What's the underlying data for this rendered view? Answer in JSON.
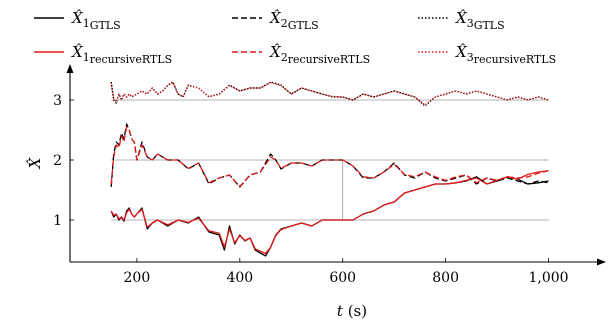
{
  "chart_data": {
    "type": "line",
    "title": "",
    "xlabel": "t",
    "xlabel_unit": "(s)",
    "ylabel": "X̂",
    "xlim": [
      70,
      1100
    ],
    "ylim": [
      0.3,
      3.5
    ],
    "xticks": [
      200,
      400,
      600,
      800,
      1000
    ],
    "xtick_labels": [
      "200",
      "400",
      "600",
      "800",
      "1,000"
    ],
    "yticks": [
      1,
      2,
      3
    ],
    "ytick_labels": [
      "1",
      "2",
      "3"
    ],
    "grid": "horizontal lines at y ticks",
    "legend_position": "top",
    "legend": [
      {
        "main": "X̂",
        "sub1": "1",
        "sub2": "GTLS",
        "color": "#000000",
        "dash": "solid"
      },
      {
        "main": "X̂",
        "sub1": "2",
        "sub2": "GTLS",
        "color": "#000000",
        "dash": "dashed"
      },
      {
        "main": "X̂",
        "sub1": "3",
        "sub2": "GTLS",
        "color": "#000000",
        "dash": "dotted"
      },
      {
        "main": "X̂",
        "sub1": "1",
        "sub2": "recursiveRTLS",
        "color": "#e41a1c",
        "dash": "solid"
      },
      {
        "main": "X̂",
        "sub1": "2",
        "sub2": "recursiveRTLS",
        "color": "#e41a1c",
        "dash": "dashed"
      },
      {
        "main": "X̂",
        "sub1": "3",
        "sub2": "recursiveRTLS",
        "color": "#e41a1c",
        "dash": "dotted"
      }
    ],
    "series": [
      {
        "color": "#000000",
        "dash": "solid",
        "width": 1.3,
        "x": [
          150,
          155,
          160,
          165,
          170,
          175,
          180,
          185,
          190,
          195,
          200,
          210,
          220,
          230,
          240,
          250,
          260,
          280,
          300,
          320,
          340,
          360,
          370,
          380,
          390,
          400,
          410,
          420,
          430,
          440,
          450,
          460,
          470,
          480,
          500,
          520,
          540,
          560,
          580,
          600,
          620,
          640,
          660,
          680,
          700,
          720,
          740,
          760,
          780,
          800,
          820,
          840,
          860,
          880,
          900,
          920,
          940,
          960,
          980,
          1000
        ],
        "y": [
          1.15,
          1.05,
          1.1,
          1.0,
          1.05,
          0.98,
          1.15,
          1.2,
          1.1,
          1.05,
          1.1,
          1.2,
          0.85,
          0.95,
          1.0,
          0.95,
          0.9,
          1.0,
          0.95,
          1.05,
          0.8,
          0.75,
          0.5,
          0.9,
          0.6,
          0.75,
          0.65,
          0.7,
          0.5,
          0.45,
          0.4,
          0.55,
          0.75,
          0.85,
          0.9,
          0.95,
          0.9,
          1.0,
          1.0,
          1.0,
          1.0,
          1.1,
          1.15,
          1.25,
          1.3,
          1.45,
          1.5,
          1.55,
          1.6,
          1.6,
          1.62,
          1.65,
          1.72,
          1.6,
          1.65,
          1.72,
          1.68,
          1.6,
          1.62,
          1.65
        ]
      },
      {
        "color": "#e41a1c",
        "dash": "solid",
        "width": 1.3,
        "x": [
          150,
          155,
          160,
          165,
          170,
          175,
          180,
          185,
          190,
          195,
          200,
          210,
          220,
          230,
          240,
          250,
          260,
          280,
          300,
          320,
          340,
          360,
          370,
          380,
          390,
          400,
          410,
          420,
          430,
          440,
          450,
          460,
          470,
          480,
          500,
          520,
          540,
          560,
          580,
          600,
          620,
          640,
          660,
          680,
          700,
          720,
          740,
          760,
          780,
          800,
          820,
          840,
          860,
          880,
          900,
          920,
          940,
          960,
          980,
          1000
        ],
        "y": [
          1.15,
          1.08,
          1.1,
          1.02,
          1.05,
          1.0,
          1.12,
          1.18,
          1.1,
          1.05,
          1.1,
          1.18,
          0.88,
          0.95,
          1.0,
          0.96,
          0.92,
          1.0,
          0.96,
          1.03,
          0.82,
          0.78,
          0.55,
          0.85,
          0.62,
          0.74,
          0.66,
          0.7,
          0.52,
          0.48,
          0.44,
          0.55,
          0.74,
          0.84,
          0.9,
          0.95,
          0.9,
          1.0,
          1.0,
          1.0,
          1.0,
          1.1,
          1.15,
          1.25,
          1.3,
          1.45,
          1.5,
          1.55,
          1.6,
          1.6,
          1.62,
          1.66,
          1.7,
          1.6,
          1.66,
          1.72,
          1.68,
          1.76,
          1.8,
          1.82
        ]
      },
      {
        "color": "#000000",
        "dash": "dashed",
        "width": 1.3,
        "x": [
          150,
          155,
          160,
          165,
          170,
          175,
          180,
          185,
          190,
          195,
          200,
          210,
          220,
          230,
          240,
          250,
          260,
          280,
          300,
          320,
          340,
          360,
          380,
          400,
          420,
          440,
          460,
          470,
          480,
          500,
          520,
          540,
          560,
          580,
          600,
          620,
          640,
          660,
          680,
          700,
          720,
          740,
          760,
          780,
          800,
          820,
          840,
          860,
          880,
          900,
          920,
          940,
          960,
          980,
          1000
        ],
        "y": [
          1.55,
          2.1,
          2.3,
          2.25,
          2.45,
          2.35,
          2.6,
          2.5,
          2.35,
          2.3,
          2.0,
          2.3,
          2.05,
          2.0,
          2.1,
          2.05,
          2.0,
          2.0,
          1.85,
          1.95,
          1.6,
          1.7,
          1.75,
          1.55,
          1.75,
          1.8,
          2.1,
          2.0,
          1.85,
          1.95,
          1.95,
          1.9,
          2.0,
          2.0,
          2.0,
          1.9,
          1.7,
          1.7,
          1.8,
          1.95,
          1.75,
          1.7,
          1.8,
          1.7,
          1.65,
          1.7,
          1.75,
          1.6,
          1.7,
          1.65,
          1.7,
          1.65,
          1.6,
          1.65,
          1.62
        ]
      },
      {
        "color": "#e41a1c",
        "dash": "dashed",
        "width": 1.3,
        "x": [
          150,
          155,
          160,
          165,
          170,
          175,
          180,
          185,
          190,
          195,
          200,
          210,
          220,
          230,
          240,
          250,
          260,
          280,
          300,
          320,
          340,
          360,
          380,
          400,
          420,
          440,
          460,
          470,
          480,
          500,
          520,
          540,
          560,
          580,
          600,
          620,
          640,
          660,
          680,
          700,
          720,
          740,
          760,
          780,
          800,
          820,
          840,
          860,
          880,
          900,
          920,
          940,
          960,
          980,
          1000
        ],
        "y": [
          1.6,
          2.05,
          2.25,
          2.2,
          2.4,
          2.3,
          2.55,
          2.5,
          2.35,
          2.3,
          2.0,
          2.25,
          2.05,
          2.0,
          2.1,
          2.05,
          2.0,
          2.0,
          1.86,
          1.95,
          1.62,
          1.7,
          1.75,
          1.56,
          1.75,
          1.8,
          2.05,
          2.0,
          1.86,
          1.95,
          1.95,
          1.9,
          2.0,
          2.0,
          2.0,
          1.9,
          1.72,
          1.7,
          1.8,
          1.93,
          1.76,
          1.72,
          1.8,
          1.72,
          1.66,
          1.72,
          1.75,
          1.62,
          1.7,
          1.66,
          1.72,
          1.7,
          1.72,
          1.78,
          1.82
        ]
      },
      {
        "color": "#000000",
        "dash": "dotted",
        "width": 1.4,
        "x": [
          150,
          155,
          160,
          165,
          170,
          175,
          180,
          185,
          190,
          200,
          210,
          220,
          230,
          240,
          250,
          260,
          270,
          280,
          290,
          300,
          320,
          340,
          360,
          380,
          400,
          420,
          440,
          460,
          480,
          500,
          520,
          540,
          560,
          580,
          600,
          620,
          640,
          660,
          680,
          700,
          720,
          740,
          760,
          780,
          800,
          820,
          840,
          860,
          880,
          900,
          920,
          940,
          960,
          980,
          1000
        ],
        "y": [
          3.3,
          3.0,
          2.95,
          3.1,
          3.0,
          3.1,
          3.05,
          3.1,
          3.05,
          3.1,
          3.15,
          3.1,
          3.2,
          3.1,
          3.15,
          3.25,
          3.3,
          3.1,
          3.05,
          3.25,
          3.2,
          3.05,
          3.1,
          3.25,
          3.15,
          3.2,
          3.2,
          3.3,
          3.25,
          3.1,
          3.2,
          3.15,
          3.1,
          3.05,
          3.05,
          3.0,
          3.1,
          3.05,
          3.1,
          3.15,
          3.1,
          3.05,
          2.9,
          3.05,
          3.1,
          3.15,
          3.1,
          3.15,
          3.1,
          3.05,
          3.0,
          3.05,
          3.0,
          3.05,
          3.0
        ]
      },
      {
        "color": "#e41a1c",
        "dash": "dotted",
        "width": 1.4,
        "x": [
          150,
          155,
          160,
          165,
          170,
          175,
          180,
          185,
          190,
          200,
          210,
          220,
          230,
          240,
          250,
          260,
          270,
          280,
          290,
          300,
          320,
          340,
          360,
          380,
          400,
          420,
          440,
          460,
          480,
          500,
          520,
          540,
          560,
          580,
          600,
          620,
          640,
          660,
          680,
          700,
          720,
          740,
          760,
          780,
          800,
          820,
          840,
          860,
          880,
          900,
          920,
          940,
          960,
          980,
          1000
        ],
        "y": [
          3.28,
          3.02,
          2.97,
          3.1,
          3.02,
          3.1,
          3.05,
          3.1,
          3.06,
          3.1,
          3.15,
          3.1,
          3.2,
          3.1,
          3.15,
          3.24,
          3.29,
          3.1,
          3.06,
          3.24,
          3.2,
          3.06,
          3.1,
          3.24,
          3.15,
          3.2,
          3.2,
          3.29,
          3.24,
          3.1,
          3.2,
          3.15,
          3.1,
          3.06,
          3.05,
          3.0,
          3.1,
          3.05,
          3.1,
          3.15,
          3.1,
          3.05,
          2.92,
          3.05,
          3.1,
          3.15,
          3.1,
          3.15,
          3.1,
          3.05,
          3.0,
          3.05,
          3.0,
          3.05,
          3.0
        ]
      }
    ]
  }
}
